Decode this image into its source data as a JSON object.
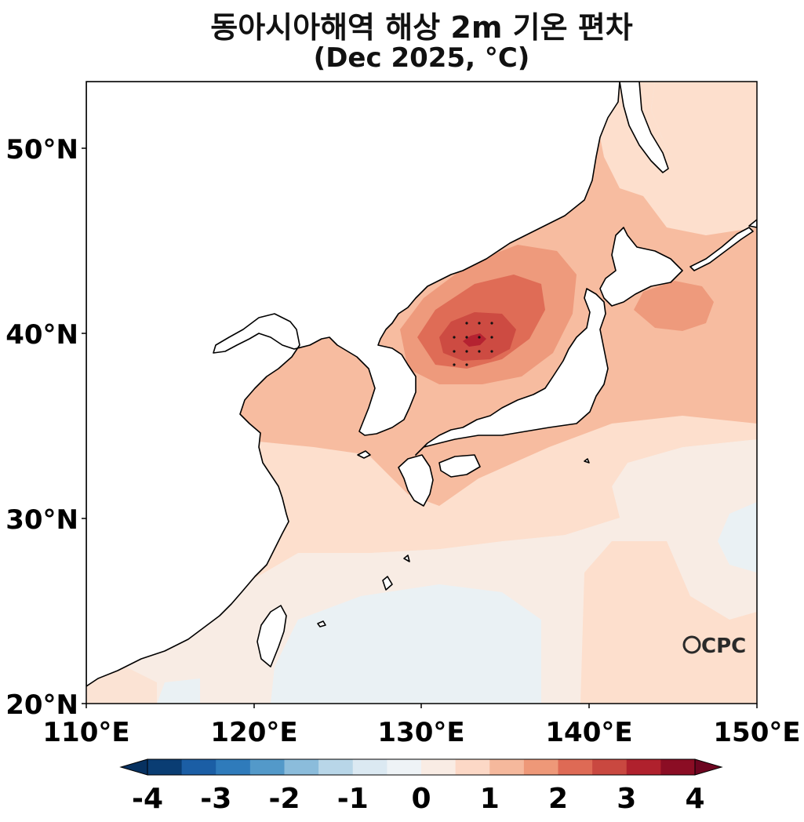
{
  "title": {
    "line1": "동아시아해역 해상 2m 기온 편차",
    "line2": "(Dec 2025, °C)"
  },
  "logo_text": "CPC",
  "map": {
    "extent": {
      "lon": [
        110,
        150
      ],
      "lat": [
        20,
        53.5
      ]
    },
    "lon_ticks": [
      "110°E",
      "120°E",
      "130°E",
      "140°E",
      "150°E"
    ],
    "lat_ticks": [
      "20°N",
      "30°N",
      "40°N",
      "50°N"
    ],
    "feature": "warm anomaly maximum over East Sea near 39.5°N 133°E, stippled significance"
  },
  "colorbar": {
    "tick_labels": [
      "-4",
      "-3",
      "-2",
      "-1",
      "0",
      "1",
      "2",
      "3",
      "4"
    ],
    "colors": [
      "#0a3d73",
      "#1b5ea5",
      "#2f7bbb",
      "#5399c9",
      "#8bbcdb",
      "#b8d6e8",
      "#dbe9f2",
      "#eef3f6",
      "#f9ece4",
      "#fcd8c6",
      "#f5b89c",
      "#ee9878",
      "#de6a55",
      "#c94840",
      "#b0212d",
      "#8b0d24"
    ],
    "under_color": "#073160",
    "over_color": "#6d0520"
  },
  "palette": {
    "ocean_base": "#f8ece4",
    "cool": "#eaf1f4",
    "light_warm": "#fddfcd",
    "warm1": "#f7bca0",
    "warm2": "#ee9a7c",
    "warm3": "#df6c56",
    "warm4": "#cd4b42",
    "warm5": "#b52231",
    "land": "#ffffff",
    "coast": "#000000"
  }
}
